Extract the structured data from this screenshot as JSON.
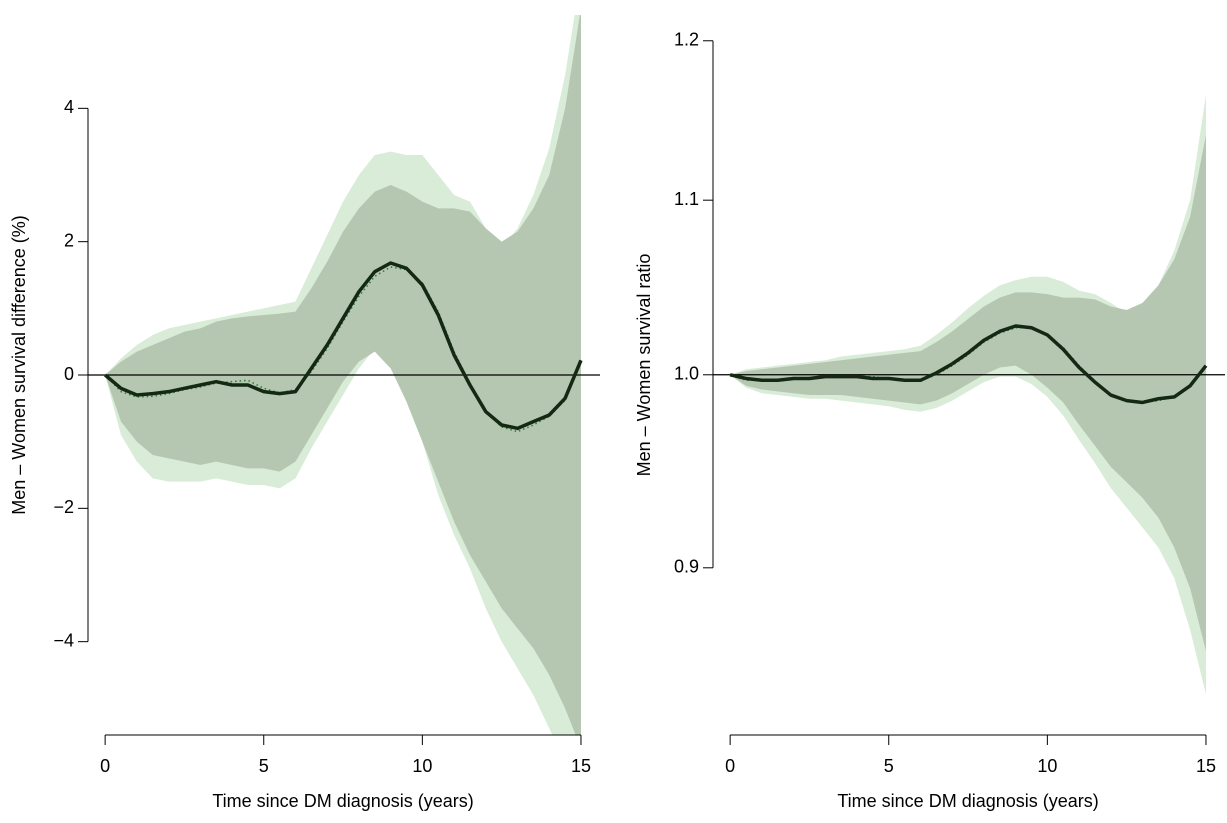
{
  "chart_data": [
    {
      "type": "line",
      "xlabel": "Time since DM diagnosis (years)",
      "ylabel": "Men – Women survival difference (%)",
      "x": [
        0,
        0.5,
        1,
        1.5,
        2,
        2.5,
        3,
        3.5,
        4,
        4.5,
        5,
        5.5,
        6,
        6.5,
        7,
        7.5,
        8,
        8.5,
        9,
        9.5,
        10,
        10.5,
        11,
        11.5,
        12,
        12.5,
        13,
        13.5,
        14,
        14.5,
        15
      ],
      "xlim": [
        -0.54,
        15.6
      ],
      "xticks": [
        0,
        5,
        10,
        15
      ],
      "ylim": [
        -5.4,
        5.4
      ],
      "yticks": [
        {
          "value": -4,
          "label": "−4"
        },
        {
          "value": -2,
          "label": "−2"
        },
        0,
        2,
        4
      ],
      "hline": 0,
      "bands": [
        {
          "color": "#d8ecd8",
          "upper": [
            0,
            0.25,
            0.45,
            0.6,
            0.7,
            0.75,
            0.8,
            0.85,
            0.9,
            0.95,
            1.0,
            1.05,
            1.1,
            1.6,
            2.1,
            2.6,
            3.0,
            3.3,
            3.35,
            3.3,
            3.3,
            3.0,
            2.7,
            2.6,
            2.2,
            1.9,
            2.2,
            2.7,
            3.4,
            4.5,
            6
          ],
          "lower": [
            0,
            -0.9,
            -1.3,
            -1.55,
            -1.6,
            -1.6,
            -1.6,
            -1.55,
            -1.6,
            -1.65,
            -1.65,
            -1.7,
            -1.55,
            -1.1,
            -0.7,
            -0.3,
            0.1,
            0.4,
            0.2,
            -0.4,
            -1.0,
            -1.8,
            -2.4,
            -2.9,
            -3.5,
            -4.0,
            -4.4,
            -4.8,
            -5.3,
            -5.8,
            -6.2
          ]
        },
        {
          "color": "#b6c7b1",
          "upper": [
            0,
            0.2,
            0.35,
            0.45,
            0.55,
            0.65,
            0.7,
            0.8,
            0.85,
            0.88,
            0.9,
            0.92,
            0.95,
            1.3,
            1.7,
            2.15,
            2.5,
            2.75,
            2.85,
            2.75,
            2.6,
            2.5,
            2.5,
            2.45,
            2.2,
            2.0,
            2.15,
            2.5,
            3.0,
            4.0,
            5.5
          ],
          "lower": [
            0,
            -0.7,
            -1.0,
            -1.2,
            -1.25,
            -1.3,
            -1.35,
            -1.3,
            -1.35,
            -1.4,
            -1.4,
            -1.45,
            -1.3,
            -0.9,
            -0.5,
            -0.1,
            0.2,
            0.35,
            0.1,
            -0.4,
            -1.0,
            -1.6,
            -2.2,
            -2.7,
            -3.1,
            -3.5,
            -3.8,
            -4.1,
            -4.5,
            -5.0,
            -5.6
          ]
        }
      ],
      "series": [
        {
          "color": "#2f7a2f",
          "dash": true,
          "values": [
            0,
            -0.25,
            -0.33,
            -0.32,
            -0.28,
            -0.22,
            -0.18,
            -0.12,
            -0.1,
            -0.08,
            -0.2,
            -0.27,
            -0.22,
            0.05,
            0.4,
            0.8,
            1.18,
            1.48,
            1.62,
            1.58,
            1.38,
            0.95,
            0.35,
            -0.12,
            -0.55,
            -0.78,
            -0.85,
            -0.75,
            -0.62,
            -0.38,
            0.2
          ]
        },
        {
          "color": "#142914",
          "dash": false,
          "values": [
            0,
            -0.2,
            -0.3,
            -0.28,
            -0.25,
            -0.2,
            -0.15,
            -0.1,
            -0.15,
            -0.15,
            -0.25,
            -0.28,
            -0.25,
            0.1,
            0.45,
            0.85,
            1.25,
            1.55,
            1.68,
            1.6,
            1.35,
            0.9,
            0.3,
            -0.15,
            -0.55,
            -0.75,
            -0.8,
            -0.7,
            -0.6,
            -0.35,
            0.22
          ]
        }
      ]
    },
    {
      "type": "line",
      "xlabel": "Time since DM diagnosis (years)",
      "ylabel": "Men – Women survival ratio",
      "x": [
        0,
        0.5,
        1,
        1.5,
        2,
        2.5,
        3,
        3.5,
        4,
        4.5,
        5,
        5.5,
        6,
        6.5,
        7,
        7.5,
        8,
        8.5,
        9,
        9.5,
        10,
        10.5,
        11,
        11.5,
        12,
        12.5,
        13,
        13.5,
        14,
        14.5,
        15
      ],
      "xlim": [
        -0.54,
        15.6
      ],
      "xticks": [
        0,
        5,
        10,
        15
      ],
      "ylim": [
        0.8215,
        1.217
      ],
      "ylog": true,
      "yticks": [
        0.9,
        {
          "value": 1,
          "label": "1.0"
        },
        1.1,
        1.2
      ],
      "hline": 1,
      "bands": [
        {
          "color": "#d8ecd8",
          "upper": [
            1.0,
            1.003,
            1.004,
            1.005,
            1.006,
            1.007,
            1.008,
            1.01,
            1.011,
            1.012,
            1.013,
            1.014,
            1.016,
            1.022,
            1.029,
            1.037,
            1.044,
            1.05,
            1.053,
            1.055,
            1.055,
            1.052,
            1.047,
            1.045,
            1.04,
            1.034,
            1.038,
            1.05,
            1.07,
            1.1,
            1.165
          ],
          "lower": [
            1.0,
            0.993,
            0.99,
            0.989,
            0.988,
            0.987,
            0.987,
            0.986,
            0.985,
            0.984,
            0.983,
            0.981,
            0.98,
            0.982,
            0.986,
            0.991,
            0.996,
            0.999,
            0.999,
            0.995,
            0.988,
            0.978,
            0.965,
            0.953,
            0.94,
            0.93,
            0.92,
            0.91,
            0.895,
            0.87,
            0.84
          ]
        },
        {
          "color": "#b6c7b1",
          "upper": [
            1.0,
            1.002,
            1.003,
            1.004,
            1.005,
            1.006,
            1.007,
            1.008,
            1.009,
            1.01,
            1.011,
            1.012,
            1.013,
            1.018,
            1.024,
            1.031,
            1.038,
            1.043,
            1.046,
            1.046,
            1.045,
            1.043,
            1.043,
            1.042,
            1.038,
            1.036,
            1.04,
            1.05,
            1.065,
            1.09,
            1.14
          ],
          "lower": [
            1.0,
            0.994,
            0.992,
            0.991,
            0.99,
            0.989,
            0.989,
            0.989,
            0.988,
            0.987,
            0.986,
            0.985,
            0.984,
            0.986,
            0.99,
            0.995,
            1.0,
            1.004,
            1.005,
            1.0,
            0.993,
            0.985,
            0.973,
            0.962,
            0.951,
            0.943,
            0.935,
            0.925,
            0.91,
            0.89,
            0.86
          ]
        }
      ],
      "series": [
        {
          "color": "#2f7a2f",
          "dash": true,
          "values": [
            1.0,
            0.997,
            0.997,
            0.997,
            0.998,
            0.998,
            0.999,
            0.999,
            0.999,
            0.999,
            0.998,
            0.997,
            0.997,
            1.0,
            1.005,
            1.011,
            1.018,
            1.023,
            1.026,
            1.026,
            1.022,
            1.015,
            1.005,
            0.996,
            0.989,
            0.986,
            0.985,
            0.986,
            0.988,
            0.994,
            1.004
          ]
        },
        {
          "color": "#142914",
          "dash": false,
          "values": [
            1.0,
            0.998,
            0.997,
            0.997,
            0.998,
            0.998,
            0.999,
            0.999,
            0.999,
            0.998,
            0.998,
            0.997,
            0.997,
            1.001,
            1.006,
            1.012,
            1.019,
            1.024,
            1.027,
            1.026,
            1.022,
            1.014,
            1.004,
            0.996,
            0.989,
            0.986,
            0.985,
            0.987,
            0.988,
            0.994,
            1.005
          ]
        }
      ]
    }
  ]
}
